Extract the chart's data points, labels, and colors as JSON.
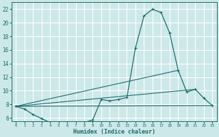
{
  "xlabel": "Humidex (Indice chaleur)",
  "ylabel": "",
  "bg_color": "#cde8e8",
  "grid_color": "#ffffff",
  "line_color": "#1a6b6b",
  "xlim": [
    -0.5,
    23.5
  ],
  "ylim": [
    5.5,
    23
  ],
  "xticks": [
    0,
    1,
    2,
    3,
    4,
    5,
    6,
    7,
    8,
    9,
    10,
    11,
    12,
    13,
    14,
    15,
    16,
    17,
    18,
    19,
    20,
    21,
    22,
    23
  ],
  "yticks": [
    6,
    8,
    10,
    12,
    14,
    16,
    18,
    20,
    22
  ],
  "curve_x": [
    0,
    1,
    2,
    3,
    4,
    5,
    6,
    7,
    8,
    9,
    10,
    11,
    12,
    13,
    14,
    15,
    16,
    17,
    18,
    19,
    20,
    21,
    22,
    23
  ],
  "curve_y": [
    7.7,
    7.3,
    6.5,
    5.9,
    5.3,
    5.3,
    5.3,
    4.8,
    5.3,
    5.7,
    8.7,
    8.5,
    8.7,
    9.0,
    16.3,
    21.0,
    22.0,
    21.5,
    18.5,
    13.0,
    9.8,
    10.2,
    8.9,
    7.8
  ],
  "line1_x": [
    0,
    23
  ],
  "line1_y": [
    7.7,
    7.8
  ],
  "line2_x": [
    0,
    21
  ],
  "line2_y": [
    7.7,
    10.2
  ],
  "line3_x": [
    0,
    19
  ],
  "line3_y": [
    7.7,
    13.0
  ]
}
